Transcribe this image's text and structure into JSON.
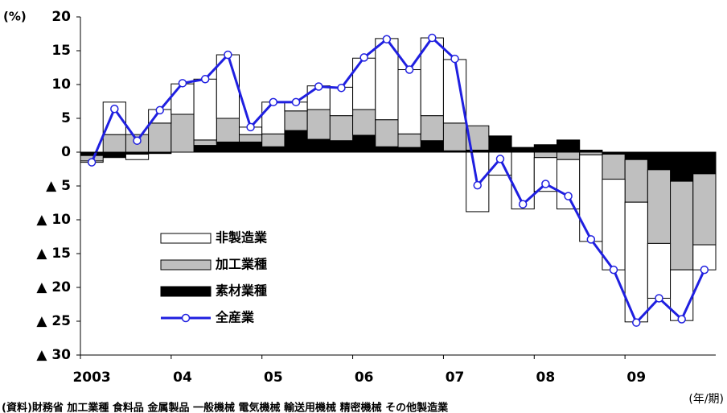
{
  "chart_data": {
    "type": "bar_line",
    "y_unit_label": "(%)",
    "x_unit_label": "(年/期)",
    "footnote": "(資料)財務省 加工業種 食料品 金属製品 一般機械 電気機械 輸送用機械 精密機械 その他製造業",
    "categories": [
      "2003",
      null,
      null,
      null,
      "04",
      null,
      null,
      null,
      "05",
      null,
      null,
      null,
      "06",
      null,
      null,
      null,
      "07",
      null,
      null,
      null,
      "08",
      null,
      null,
      null,
      "09",
      null,
      null,
      null
    ],
    "series": [
      {
        "name": "素材業種",
        "kind": "bar",
        "color": "#000000",
        "values": [
          -0.5,
          -0.8,
          -0.3,
          -0.2,
          0,
          1.0,
          1.5,
          1.5,
          0.8,
          3.2,
          1.9,
          1.7,
          2.5,
          0.8,
          0.7,
          1.7,
          0.2,
          0.3,
          2.3,
          0.7,
          1.1,
          1.8,
          0.3,
          -0.3,
          -1.1,
          -2.6,
          -4.3,
          -3.2
        ]
      },
      {
        "name": "加工業種",
        "kind": "bar",
        "color": "#bfbfbf",
        "values": [
          -0.8,
          2.6,
          2.6,
          4.3,
          5.6,
          0.8,
          3.5,
          1.1,
          1.9,
          2.9,
          4.4,
          3.7,
          3.8,
          4.0,
          2.0,
          3.7,
          4.1,
          3.6,
          0.1,
          0,
          -0.8,
          -1.1,
          -0.4,
          -3.7,
          -6.3,
          -10.9,
          -13.1,
          -10.5
        ]
      },
      {
        "name": "非製造業",
        "kind": "bar",
        "color": "#ffffff",
        "values": [
          -0.2,
          4.8,
          -0.8,
          2.0,
          4.5,
          9.0,
          9.4,
          1.1,
          4.7,
          1.3,
          3.5,
          4.2,
          7.6,
          12.0,
          9.5,
          11.5,
          9.4,
          -8.8,
          -3.4,
          -8.4,
          -5.0,
          -7.3,
          -12.8,
          -13.4,
          -17.7,
          -8.1,
          -7.5,
          -3.7
        ]
      },
      {
        "name": "全産業",
        "kind": "line",
        "color": "#1f1fe0",
        "values": [
          -1.5,
          6.4,
          1.7,
          6.2,
          10.2,
          10.8,
          14.4,
          3.7,
          7.4,
          7.4,
          9.7,
          9.5,
          14.0,
          16.7,
          12.2,
          16.9,
          13.8,
          -4.9,
          -1.0,
          -7.7,
          -4.7,
          -6.5,
          -12.9,
          -17.4,
          -25.2,
          -21.6,
          -24.7,
          -17.4
        ]
      }
    ],
    "legend_order": [
      2,
      1,
      0,
      3
    ],
    "ylim": [
      -30,
      20
    ],
    "yticks": [
      20,
      15,
      10,
      5,
      0,
      {
        "value": -5,
        "label": "▲ 5"
      },
      {
        "value": -10,
        "label": "▲ 10"
      },
      {
        "value": -15,
        "label": "▲ 15"
      },
      {
        "value": -20,
        "label": "▲ 20"
      },
      {
        "value": -25,
        "label": "▲ 25"
      },
      {
        "value": -30,
        "label": "▲ 30"
      }
    ]
  }
}
